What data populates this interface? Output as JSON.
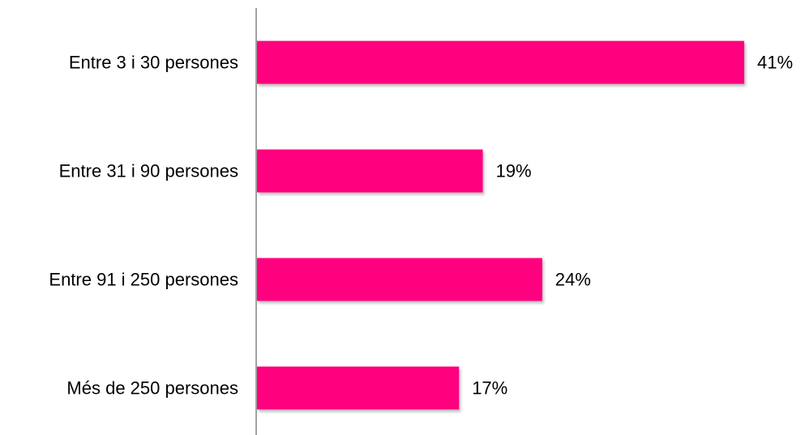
{
  "chart_data": {
    "type": "bar",
    "orientation": "horizontal",
    "categories": [
      "Entre 3 i 30 persones",
      "Entre 31 i 90 persones",
      "Entre 91 i 250 persones",
      "Més de 250 persones"
    ],
    "values": [
      41,
      19,
      24,
      17
    ],
    "value_labels": [
      "41%",
      "19%",
      "24%",
      "17%"
    ],
    "xlim": [
      0,
      41
    ],
    "grid": false,
    "legend": "none",
    "colors": {
      "bar": "#ff007f",
      "axis": "#808080",
      "text": "#000000"
    }
  }
}
